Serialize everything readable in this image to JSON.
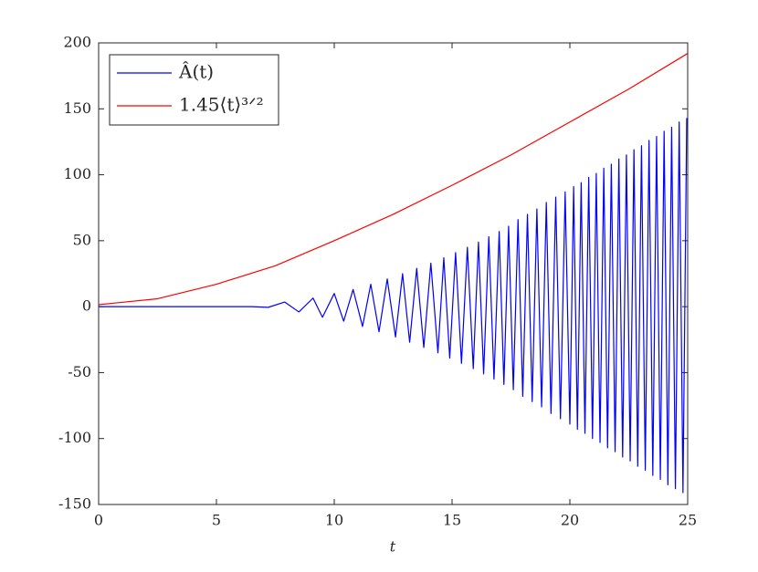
{
  "chart_data": {
    "type": "line",
    "xlabel": "t",
    "xlim": [
      0,
      25
    ],
    "xticks": [
      0,
      5,
      10,
      15,
      20,
      25
    ],
    "ylim": [
      -150,
      200
    ],
    "yticks": [
      -150,
      -100,
      -50,
      0,
      50,
      100,
      150,
      200
    ],
    "legend": "upper left",
    "series": [
      {
        "name": "Â(t)",
        "color": "#0000ff",
        "x": [
          0,
          6.5,
          7.2,
          7.9,
          8.5,
          9.1,
          9.5,
          10.0,
          10.4,
          10.8,
          11.2,
          11.55,
          11.9,
          12.25,
          12.6,
          12.9,
          13.2,
          13.5,
          13.8,
          14.1,
          14.4,
          14.65,
          14.9,
          15.15,
          15.4,
          15.65,
          15.9,
          16.12,
          16.34,
          16.56,
          16.78,
          17.0,
          17.2,
          17.4,
          17.6,
          17.8,
          18.0,
          18.2,
          18.4,
          18.6,
          18.8,
          19.0,
          19.2,
          19.4,
          19.6,
          19.8,
          20.0,
          20.16,
          20.32,
          20.48,
          20.64,
          20.8,
          20.96,
          21.12,
          21.28,
          21.44,
          21.6,
          21.76,
          21.92,
          22.08,
          22.24,
          22.4,
          22.56,
          22.72,
          22.88,
          23.04,
          23.2,
          23.36,
          23.52,
          23.68,
          23.84,
          24.0,
          24.16,
          24.32,
          24.48,
          24.64,
          24.8,
          24.96
        ],
        "values": [
          0,
          0,
          -0.5,
          3.5,
          -4,
          6.5,
          -8,
          10,
          -11,
          13,
          -15,
          17,
          -19,
          21,
          -23,
          25,
          -27,
          29,
          -31,
          33,
          -35,
          37,
          -39,
          41,
          -43,
          45,
          -47,
          49,
          -51,
          53,
          -55,
          57,
          -59,
          61,
          -63,
          66,
          -68,
          70,
          -72,
          74,
          -76,
          79,
          -81,
          83,
          -85,
          87,
          -89,
          91,
          -93,
          94,
          -96,
          98,
          -100,
          101,
          -103,
          105,
          -107,
          108,
          -110,
          112,
          -114,
          115,
          -117,
          119,
          -121,
          122,
          -124,
          126,
          -128,
          129,
          -131,
          133,
          -135,
          136,
          -138,
          140,
          -141,
          143
        ]
      },
      {
        "name": "1.45⟨t⟩³ᐟ²",
        "color": "#ff0000",
        "x": [
          0,
          2.5,
          5,
          7.5,
          10,
          12.5,
          15,
          17.5,
          20,
          22.5,
          25
        ],
        "values": [
          1.5,
          6,
          17,
          31,
          50,
          70,
          92,
          115,
          140,
          165,
          192
        ]
      }
    ]
  }
}
